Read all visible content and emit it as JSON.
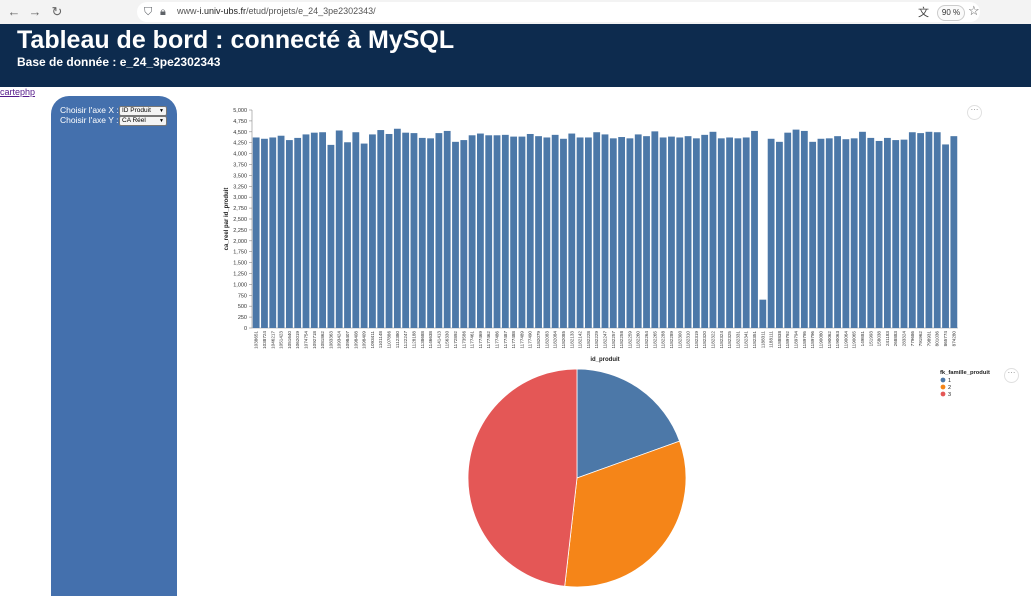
{
  "browser": {
    "url_prefix": "www-",
    "url_host": "i.univ-ubs.fr",
    "url_path": "/etud/projets/e_24_3pe2302343/",
    "zoom": "90 %"
  },
  "header": {
    "title": "Tableau de bord : connecté à MySQL",
    "subtitle": "Base de donnée : e_24_3pe2302343"
  },
  "link": {
    "label": "cartephp"
  },
  "sidebar": {
    "x_label": "Choisir l'axe X :",
    "x_value": "ID Produit",
    "y_label": "Choisir l'axe Y :",
    "y_value": "CA Réel"
  },
  "colors": {
    "header_bg": "#0d2b4e",
    "sidebar_bg": "#4470ad",
    "bar": "#4c78a8"
  },
  "chart_data": [
    {
      "type": "bar",
      "xlabel": "id_produit",
      "ylabel": "ca_reel par id_produit",
      "ylim": [
        0,
        5000
      ],
      "yticks": [
        0,
        250,
        500,
        750,
        1000,
        1250,
        1500,
        1750,
        2000,
        2250,
        2500,
        2750,
        3000,
        3250,
        3500,
        3750,
        4000,
        4250,
        4500,
        4750,
        5000
      ],
      "ytick_labels": [
        "0",
        "250",
        "500",
        "750",
        "1,000",
        "1,250",
        "1,500",
        "1,750",
        "2,000",
        "2,250",
        "2,500",
        "2,750",
        "3,000",
        "3,250",
        "3,500",
        "3,750",
        "4,000",
        "4,250",
        "4,500",
        "4,750",
        "5,000"
      ],
      "grid": false,
      "categories": [
        "1038651",
        "1038724",
        "1046217",
        "1051423",
        "1051640",
        "1062019",
        "1074754",
        "1092718",
        "1081862",
        "1083363",
        "1093424",
        "1098407",
        "1098408",
        "1098409",
        "1093411",
        "1101148",
        "1107886",
        "1112380",
        "1122247",
        "1128188",
        "1138688",
        "1146638",
        "1141413",
        "1156330",
        "1172892",
        "1173586",
        "1177461",
        "1177469",
        "1177462",
        "1177486",
        "1177487",
        "1177488",
        "1177489",
        "1177490",
        "1182079",
        "1182083",
        "1182084",
        "1182085",
        "1182133",
        "1182142",
        "1182228",
        "1182229",
        "1182247",
        "1182257",
        "1182258",
        "1182259",
        "1182260",
        "1182264",
        "1182265",
        "1182288",
        "1182289",
        "1182300",
        "1182310",
        "1182319",
        "1182320",
        "1182322",
        "1182324",
        "1182325",
        "1182331",
        "1182341",
        "1182351",
        "1188311",
        "1188111",
        "1188838",
        "1189792",
        "1189794",
        "1189795",
        "1189796",
        "1190080",
        "1190062",
        "1190063",
        "1190064",
        "1190065",
        "149881",
        "151993",
        "158038",
        "241183",
        "268883",
        "283324",
        "779686",
        "791962",
        "798931",
        "801036",
        "865774",
        "874280"
      ],
      "values": [
        4370,
        4340,
        4370,
        4410,
        4310,
        4360,
        4440,
        4480,
        4490,
        4200,
        4530,
        4260,
        4490,
        4230,
        4440,
        4540,
        4450,
        4570,
        4480,
        4470,
        4360,
        4350,
        4470,
        4520,
        4270,
        4310,
        4420,
        4460,
        4420,
        4420,
        4430,
        4390,
        4390,
        4450,
        4400,
        4370,
        4430,
        4340,
        4460,
        4370,
        4370,
        4490,
        4440,
        4350,
        4380,
        4350,
        4440,
        4400,
        4510,
        4370,
        4390,
        4370,
        4400,
        4350,
        4430,
        4500,
        4350,
        4370,
        4350,
        4370,
        4520,
        650,
        4340,
        4270,
        4480,
        4550,
        4520,
        4270,
        4340,
        4350,
        4400,
        4330,
        4350,
        4500,
        4360,
        4290,
        4360,
        4310,
        4320,
        4490,
        4470,
        4500,
        4490,
        4210,
        4400
      ]
    },
    {
      "type": "pie",
      "legend_title": "fk_famille_produit",
      "legend_position": "top-right",
      "categories": [
        "1",
        "2",
        "3"
      ],
      "values": [
        19.5,
        32.3,
        48.2
      ],
      "colors": [
        "#4c78a8",
        "#f58518",
        "#e45756"
      ]
    }
  ]
}
